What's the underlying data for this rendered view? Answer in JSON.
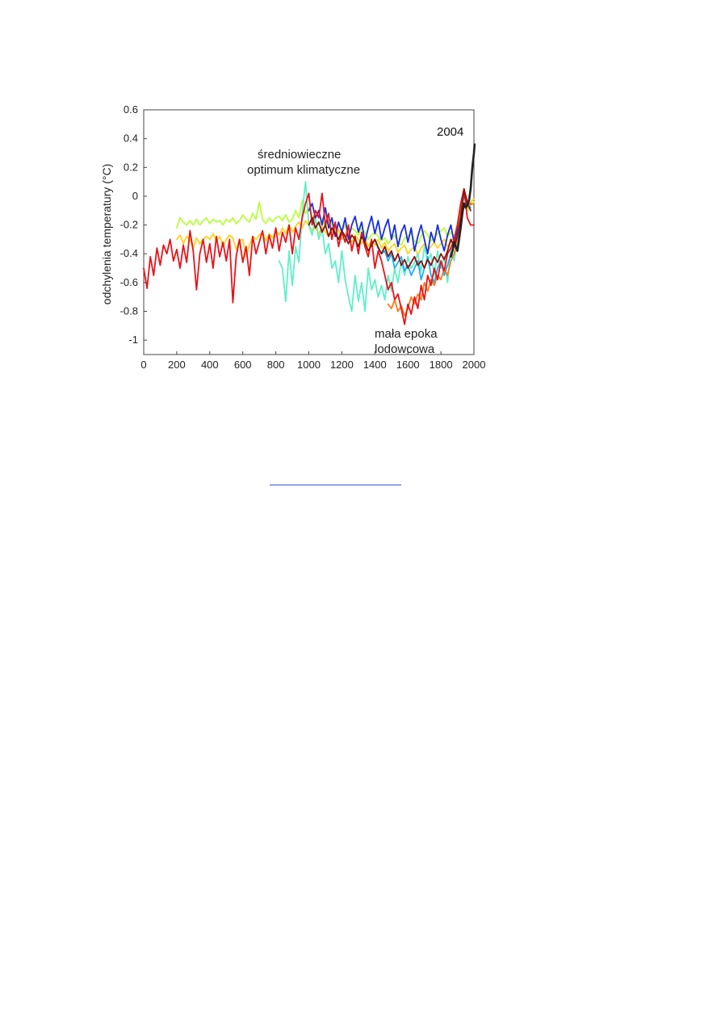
{
  "chart_data": {
    "type": "line",
    "title": "",
    "xlabel": "",
    "ylabel": "odchylenia temperatury (°C)",
    "xlim": [
      0,
      2000
    ],
    "ylim": [
      -1.1,
      0.6
    ],
    "xticks": [
      0,
      200,
      400,
      600,
      800,
      1000,
      1200,
      1400,
      1600,
      1800,
      2000
    ],
    "yticks": [
      0.6,
      0.4,
      0.2,
      0,
      -0.2,
      -0.4,
      -0.6,
      -0.8,
      -1
    ],
    "grid": false,
    "legend": "none",
    "annotations": [
      {
        "text_lines": [
          "średniowieczne",
          "optimum klimatyczne"
        ],
        "x": 700,
        "y": 0.3
      },
      {
        "text_lines": [
          "mała epoka",
          "lodowcowa"
        ],
        "x": 1400,
        "y": -0.95
      },
      {
        "text_lines": [
          "2004"
        ],
        "x": 1780,
        "y": 0.45
      }
    ],
    "series": [
      {
        "color": "#b8ff3a",
        "x": [
          200,
          220,
          240,
          260,
          280,
          300,
          320,
          340,
          360,
          380,
          400,
          420,
          440,
          460,
          480,
          500,
          520,
          540,
          560,
          580,
          600,
          620,
          640,
          660,
          680,
          700,
          720,
          740,
          760,
          780,
          800,
          820,
          840,
          860,
          880,
          900,
          920,
          940,
          960,
          980,
          1000,
          1020,
          1040,
          1060,
          1080,
          1100,
          1120,
          1140,
          1160,
          1180,
          1200,
          1220,
          1240,
          1260,
          1280,
          1300,
          1320,
          1340,
          1360,
          1380,
          1400,
          1420,
          1440,
          1460,
          1480,
          1500,
          1520,
          1540,
          1560,
          1580,
          1600,
          1620,
          1640,
          1660,
          1680,
          1700,
          1720,
          1740,
          1760,
          1780,
          1800,
          1820,
          1840,
          1860,
          1880,
          1900,
          1920,
          1940,
          1960,
          1980,
          2000
        ],
        "values": [
          -0.22,
          -0.15,
          -0.18,
          -0.2,
          -0.17,
          -0.2,
          -0.16,
          -0.2,
          -0.17,
          -0.15,
          -0.19,
          -0.16,
          -0.18,
          -0.17,
          -0.2,
          -0.16,
          -0.18,
          -0.15,
          -0.19,
          -0.17,
          -0.13,
          -0.16,
          -0.18,
          -0.12,
          -0.16,
          -0.04,
          -0.16,
          -0.19,
          -0.15,
          -0.18,
          -0.15,
          -0.14,
          -0.17,
          -0.13,
          -0.18,
          -0.16,
          -0.1,
          -0.15,
          -0.03,
          -0.12,
          -0.08,
          -0.14,
          -0.18,
          -0.2,
          -0.16,
          -0.22,
          -0.15,
          -0.2,
          -0.22,
          -0.19,
          -0.24,
          -0.2,
          -0.26,
          -0.22,
          -0.24,
          -0.27,
          -0.22,
          -0.25,
          -0.3,
          -0.27,
          -0.25,
          -0.28,
          -0.31,
          -0.29,
          -0.33,
          -0.3,
          -0.27,
          -0.32,
          -0.34,
          -0.29,
          -0.28,
          -0.26,
          -0.31,
          -0.33,
          -0.28,
          -0.24,
          -0.27,
          -0.31,
          -0.29,
          -0.26,
          -0.24,
          -0.22,
          -0.28,
          -0.25,
          -0.28,
          -0.2,
          -0.12,
          -0.05,
          -0.1,
          -0.06,
          -0.04
        ]
      },
      {
        "color": "#ffd21a",
        "x": [
          200,
          220,
          240,
          260,
          280,
          300,
          320,
          340,
          360,
          380,
          400,
          420,
          440,
          460,
          480,
          500,
          520,
          540,
          560,
          580,
          600,
          620,
          640,
          660,
          680,
          700,
          720,
          740,
          760,
          780,
          800,
          820,
          840,
          860,
          880,
          900,
          920,
          940,
          960,
          980,
          1000,
          1020,
          1040,
          1060,
          1080,
          1100,
          1120,
          1140,
          1160,
          1180,
          1200,
          1220,
          1240,
          1260,
          1280,
          1300,
          1320,
          1340,
          1360,
          1380,
          1400,
          1420,
          1440,
          1460,
          1480,
          1500,
          1520,
          1540,
          1560,
          1580,
          1600,
          1620,
          1640,
          1660,
          1680,
          1700,
          1720,
          1740,
          1760,
          1780,
          1800,
          1820,
          1840,
          1860,
          1880,
          1900,
          1920,
          1940,
          1960,
          1980,
          2000
        ],
        "values": [
          -0.3,
          -0.27,
          -0.33,
          -0.28,
          -0.3,
          -0.36,
          -0.29,
          -0.33,
          -0.3,
          -0.28,
          -0.3,
          -0.26,
          -0.31,
          -0.28,
          -0.35,
          -0.3,
          -0.27,
          -0.29,
          -0.37,
          -0.31,
          -0.3,
          -0.42,
          -0.34,
          -0.28,
          -0.3,
          -0.27,
          -0.25,
          -0.31,
          -0.26,
          -0.29,
          -0.24,
          -0.27,
          -0.22,
          -0.26,
          -0.2,
          -0.25,
          -0.21,
          -0.18,
          -0.22,
          -0.17,
          -0.2,
          -0.24,
          -0.22,
          -0.26,
          -0.21,
          -0.25,
          -0.28,
          -0.24,
          -0.27,
          -0.23,
          -0.3,
          -0.26,
          -0.28,
          -0.32,
          -0.27,
          -0.3,
          -0.33,
          -0.29,
          -0.35,
          -0.31,
          -0.34,
          -0.3,
          -0.36,
          -0.32,
          -0.38,
          -0.35,
          -0.33,
          -0.39,
          -0.36,
          -0.34,
          -0.4,
          -0.37,
          -0.35,
          -0.41,
          -0.36,
          -0.33,
          -0.38,
          -0.35,
          -0.32,
          -0.36,
          -0.33,
          -0.3,
          -0.35,
          -0.32,
          -0.28,
          -0.24,
          -0.1,
          0.02,
          -0.08,
          -0.04,
          -0.02
        ]
      },
      {
        "color": "#5ff0c8",
        "x": [
          820,
          840,
          860,
          880,
          900,
          920,
          940,
          960,
          980,
          1000,
          1020,
          1040,
          1060,
          1080,
          1100,
          1120,
          1140,
          1160,
          1180,
          1200,
          1220,
          1240,
          1260,
          1280,
          1300,
          1320,
          1340,
          1360,
          1380,
          1400,
          1420,
          1440,
          1460,
          1480,
          1500,
          1520,
          1540,
          1560,
          1580,
          1600,
          1620,
          1640,
          1660,
          1680,
          1700,
          1720,
          1740,
          1760,
          1780,
          1800,
          1820,
          1840,
          1860,
          1880,
          1900,
          1920,
          1940
        ],
        "values": [
          -0.45,
          -0.5,
          -0.73,
          -0.38,
          -0.62,
          -0.35,
          -0.46,
          -0.12,
          0.1,
          -0.2,
          -0.27,
          -0.15,
          -0.3,
          -0.22,
          -0.4,
          -0.33,
          -0.5,
          -0.45,
          -0.6,
          -0.38,
          -0.58,
          -0.7,
          -0.8,
          -0.55,
          -0.73,
          -0.6,
          -0.8,
          -0.5,
          -0.65,
          -0.58,
          -0.7,
          -0.62,
          -0.72,
          -0.55,
          -0.66,
          -0.5,
          -0.6,
          -0.45,
          -0.55,
          -0.42,
          -0.5,
          -0.46,
          -0.4,
          -0.52,
          -0.35,
          -0.45,
          -0.4,
          -0.55,
          -0.38,
          -0.5,
          -0.42,
          -0.6,
          -0.36,
          -0.45,
          -0.3,
          -0.1,
          0.02
        ]
      },
      {
        "color": "#1a2ee0",
        "x": [
          1000,
          1020,
          1040,
          1060,
          1080,
          1100,
          1120,
          1140,
          1160,
          1180,
          1200,
          1220,
          1240,
          1260,
          1280,
          1300,
          1320,
          1340,
          1360,
          1380,
          1400,
          1420,
          1440,
          1460,
          1480,
          1500,
          1520,
          1540,
          1560,
          1580,
          1600,
          1620,
          1640,
          1660,
          1680,
          1700,
          1720,
          1740,
          1760,
          1780,
          1800,
          1820,
          1840,
          1860,
          1880,
          1900,
          1920,
          1940,
          1960,
          1980
        ],
        "values": [
          -0.1,
          -0.05,
          -0.15,
          -0.1,
          -0.2,
          -0.08,
          -0.22,
          -0.15,
          -0.28,
          -0.18,
          -0.25,
          -0.15,
          -0.3,
          -0.2,
          -0.14,
          -0.25,
          -0.18,
          -0.32,
          -0.22,
          -0.14,
          -0.26,
          -0.17,
          -0.3,
          -0.22,
          -0.16,
          -0.3,
          -0.2,
          -0.35,
          -0.25,
          -0.2,
          -0.32,
          -0.22,
          -0.38,
          -0.28,
          -0.2,
          -0.3,
          -0.4,
          -0.25,
          -0.32,
          -0.2,
          -0.3,
          -0.38,
          -0.27,
          -0.2,
          -0.32,
          -0.24,
          -0.1,
          0.02,
          -0.06,
          -0.05
        ]
      },
      {
        "color": "#1ab0f5",
        "x": [
          1400,
          1420,
          1440,
          1460,
          1480,
          1500,
          1520,
          1540,
          1560,
          1580,
          1600,
          1620,
          1640,
          1660,
          1680,
          1700,
          1720,
          1740,
          1760,
          1780,
          1800,
          1820,
          1840,
          1860,
          1880,
          1900,
          1920,
          1940,
          1960,
          1980
        ],
        "values": [
          -0.3,
          -0.35,
          -0.4,
          -0.38,
          -0.45,
          -0.4,
          -0.5,
          -0.46,
          -0.42,
          -0.52,
          -0.48,
          -0.55,
          -0.5,
          -0.45,
          -0.58,
          -0.5,
          -0.42,
          -0.55,
          -0.6,
          -0.5,
          -0.45,
          -0.55,
          -0.48,
          -0.4,
          -0.35,
          -0.3,
          -0.12,
          0.0,
          -0.05,
          -0.08
        ]
      },
      {
        "color": "#ff7a1a",
        "x": [
          1480,
          1500,
          1520,
          1540,
          1560,
          1580,
          1600,
          1620,
          1640,
          1660,
          1680,
          1700,
          1720,
          1740,
          1760,
          1780,
          1800,
          1820,
          1840,
          1860,
          1880,
          1900,
          1920,
          1940,
          1960,
          1980,
          2000
        ],
        "values": [
          -0.75,
          -0.78,
          -0.72,
          -0.8,
          -0.76,
          -0.83,
          -0.78,
          -0.7,
          -0.75,
          -0.68,
          -0.72,
          -0.6,
          -0.66,
          -0.58,
          -0.62,
          -0.55,
          -0.58,
          -0.5,
          -0.55,
          -0.45,
          -0.4,
          -0.3,
          -0.1,
          0.05,
          -0.03,
          -0.06,
          -0.05
        ]
      },
      {
        "color": "#e8141a",
        "x": [
          0,
          20,
          40,
          60,
          80,
          100,
          120,
          140,
          160,
          180,
          200,
          220,
          240,
          260,
          280,
          300,
          320,
          340,
          360,
          380,
          400,
          420,
          440,
          460,
          480,
          500,
          520,
          540,
          560,
          580,
          600,
          620,
          640,
          660,
          680,
          700,
          720,
          740,
          760,
          780,
          800,
          820,
          840,
          860,
          880,
          900,
          920,
          940,
          960,
          980,
          1000,
          1020,
          1040,
          1060,
          1080,
          1100,
          1120,
          1140,
          1160,
          1180,
          1200,
          1220,
          1240,
          1260,
          1280,
          1300,
          1320,
          1340,
          1360,
          1380,
          1400,
          1420,
          1440,
          1460,
          1480,
          1500,
          1520,
          1540,
          1560,
          1580,
          1600,
          1620,
          1640,
          1660,
          1680,
          1700,
          1720,
          1740,
          1760,
          1780,
          1800,
          1820,
          1840,
          1860,
          1880,
          1900,
          1920,
          1940,
          1960,
          1980,
          2000
        ],
        "values": [
          -0.5,
          -0.64,
          -0.42,
          -0.55,
          -0.36,
          -0.48,
          -0.34,
          -0.4,
          -0.3,
          -0.45,
          -0.37,
          -0.5,
          -0.34,
          -0.46,
          -0.24,
          -0.38,
          -0.65,
          -0.4,
          -0.3,
          -0.46,
          -0.33,
          -0.5,
          -0.28,
          -0.42,
          -0.32,
          -0.45,
          -0.3,
          -0.74,
          -0.42,
          -0.3,
          -0.46,
          -0.35,
          -0.55,
          -0.28,
          -0.4,
          -0.32,
          -0.24,
          -0.4,
          -0.27,
          -0.36,
          -0.22,
          -0.38,
          -0.25,
          -0.32,
          -0.2,
          -0.4,
          -0.22,
          -0.3,
          -0.15,
          -0.05,
          0.02,
          -0.2,
          -0.1,
          -0.15,
          0.02,
          -0.2,
          -0.12,
          -0.3,
          -0.18,
          -0.35,
          -0.25,
          -0.32,
          -0.2,
          -0.38,
          -0.28,
          -0.4,
          -0.25,
          -0.35,
          -0.42,
          -0.3,
          -0.5,
          -0.38,
          -0.45,
          -0.55,
          -0.65,
          -0.6,
          -0.72,
          -0.68,
          -0.78,
          -0.89,
          -0.75,
          -0.82,
          -0.7,
          -0.78,
          -0.62,
          -0.72,
          -0.55,
          -0.62,
          -0.5,
          -0.58,
          -0.45,
          -0.52,
          -0.4,
          -0.36,
          -0.3,
          -0.2,
          -0.05,
          0.05,
          -0.15,
          -0.2,
          -0.2
        ]
      },
      {
        "color": "#8a1410",
        "x": [
          1000,
          1020,
          1040,
          1060,
          1080,
          1100,
          1120,
          1140,
          1160,
          1180,
          1200,
          1220,
          1240,
          1260,
          1280,
          1300,
          1320,
          1340,
          1360,
          1380,
          1400,
          1420,
          1440,
          1460,
          1480,
          1500,
          1520,
          1540,
          1560,
          1580,
          1600,
          1620,
          1640,
          1660,
          1680,
          1700,
          1720,
          1740,
          1760,
          1780,
          1800,
          1820,
          1840,
          1860,
          1880,
          1900,
          1920,
          1940,
          1960,
          1980
        ],
        "values": [
          -0.2,
          -0.15,
          -0.22,
          -0.18,
          -0.25,
          -0.2,
          -0.28,
          -0.22,
          -0.26,
          -0.3,
          -0.24,
          -0.28,
          -0.33,
          -0.27,
          -0.3,
          -0.35,
          -0.28,
          -0.32,
          -0.38,
          -0.34,
          -0.3,
          -0.36,
          -0.4,
          -0.35,
          -0.42,
          -0.38,
          -0.45,
          -0.4,
          -0.48,
          -0.44,
          -0.5,
          -0.46,
          -0.42,
          -0.48,
          -0.45,
          -0.5,
          -0.44,
          -0.48,
          -0.42,
          -0.46,
          -0.4,
          -0.44,
          -0.38,
          -0.3,
          -0.35,
          -0.28,
          -0.15,
          0.05,
          -0.05,
          -0.1
        ]
      },
      {
        "color": "#222222",
        "x": [
          1860,
          1870,
          1880,
          1890,
          1900,
          1910,
          1920,
          1930,
          1940,
          1950,
          1960,
          1970,
          1980,
          1990,
          2000,
          2004
        ],
        "values": [
          -0.42,
          -0.38,
          -0.32,
          -0.35,
          -0.38,
          -0.3,
          -0.22,
          -0.12,
          -0.05,
          -0.08,
          -0.06,
          -0.03,
          0.05,
          0.2,
          0.3,
          0.36
        ]
      }
    ]
  }
}
